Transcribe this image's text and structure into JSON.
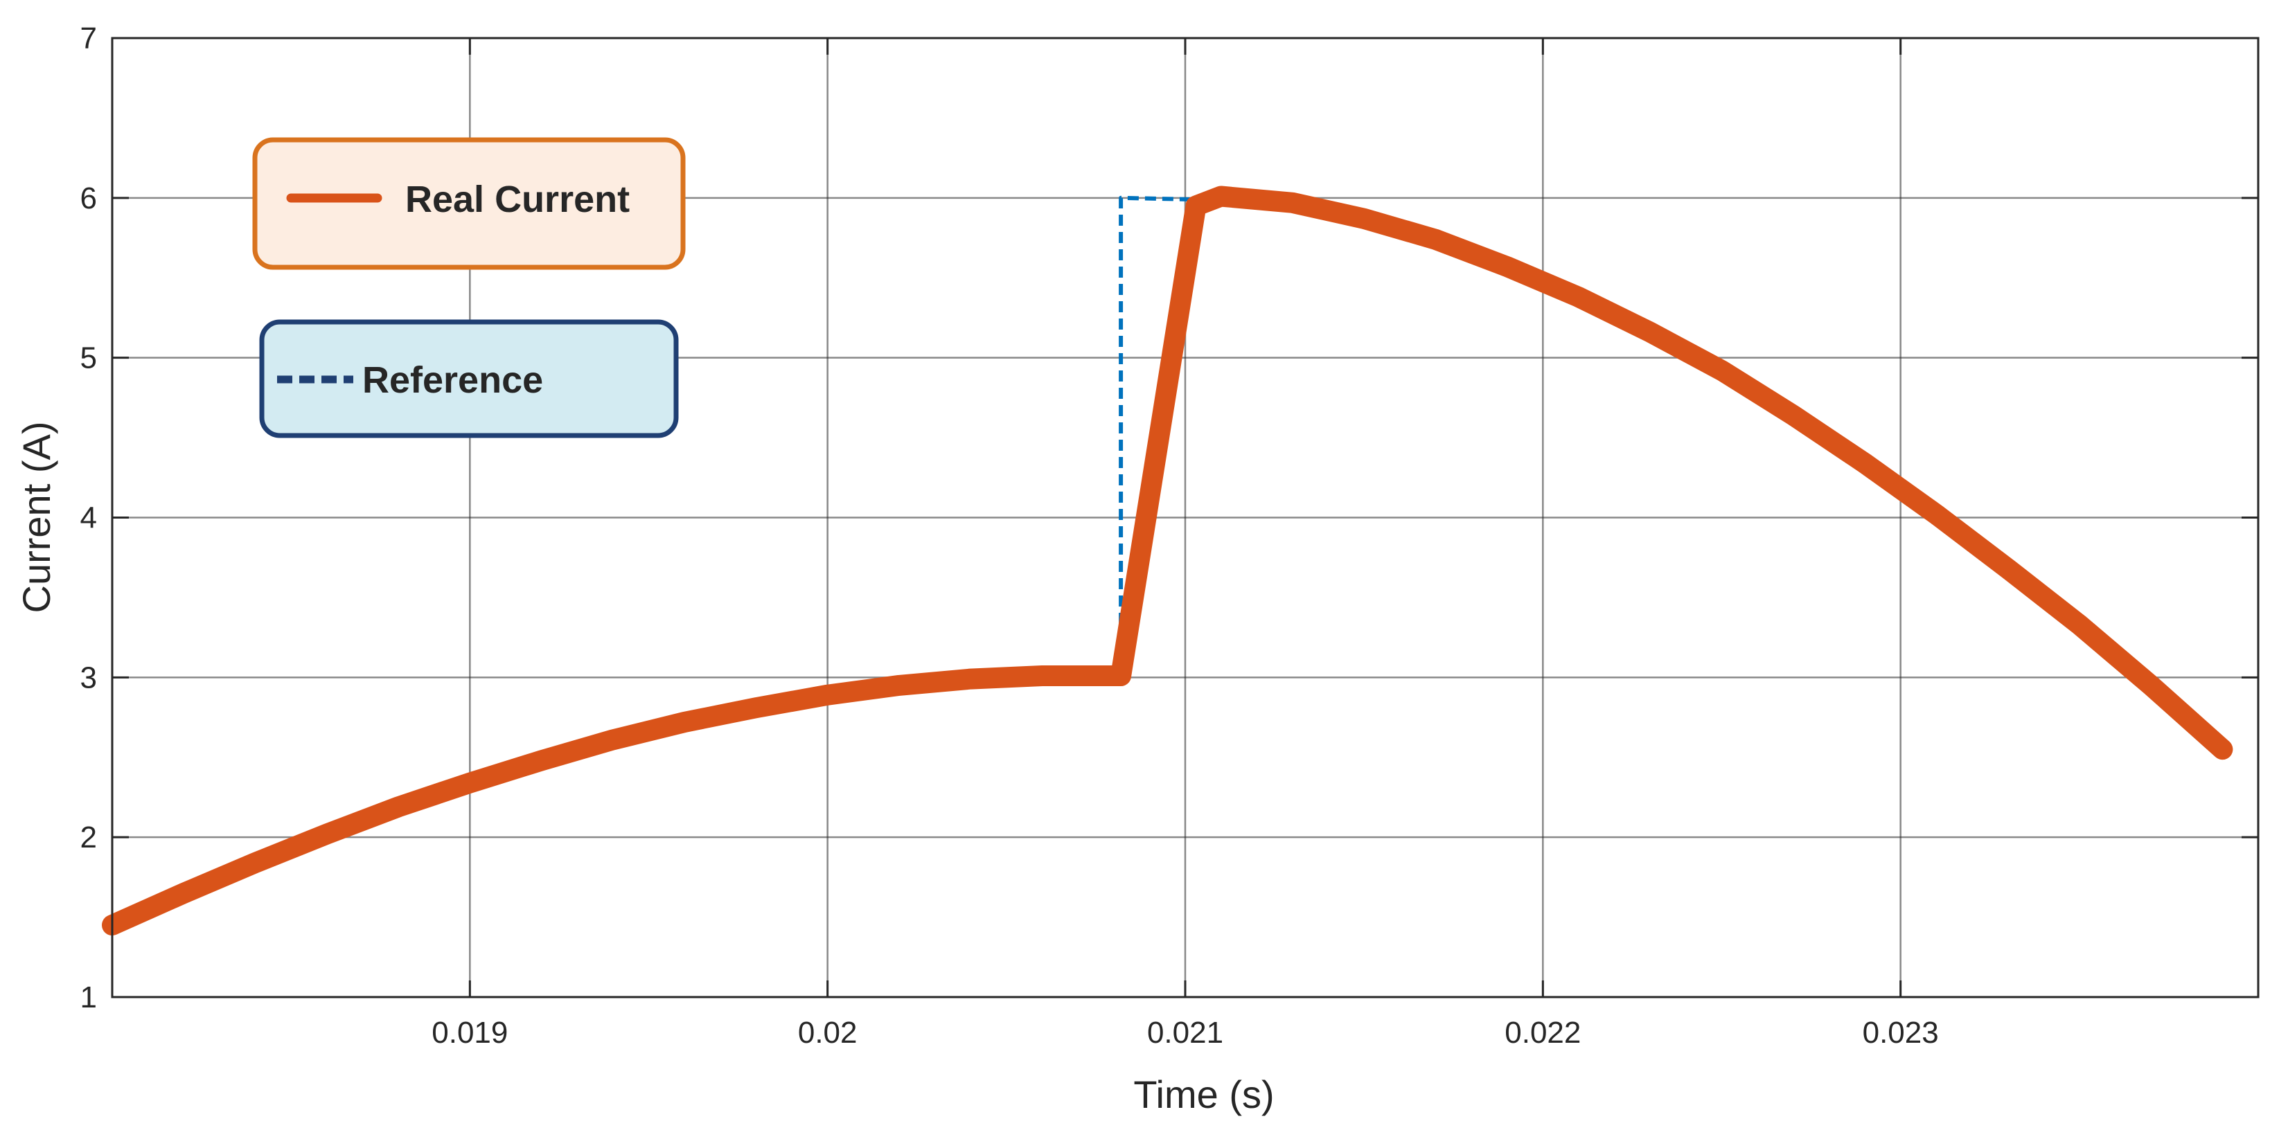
{
  "chart_data": {
    "type": "line",
    "title": "",
    "xlabel": "Time (s)",
    "ylabel": "Current (A)",
    "xlim": [
      0.018,
      0.024
    ],
    "ylim": [
      1,
      7
    ],
    "xticks": [
      0.019,
      0.02,
      0.021,
      0.022,
      0.023
    ],
    "xtick_labels": [
      "0.019",
      "0.02",
      "0.021",
      "0.022",
      "0.023"
    ],
    "yticks": [
      1,
      2,
      3,
      4,
      5,
      6,
      7
    ],
    "ytick_labels": [
      "1",
      "2",
      "3",
      "4",
      "5",
      "6",
      "7"
    ],
    "grid": true,
    "legend_placement": "top-left",
    "series": [
      {
        "name": "Real Current",
        "color": "#D95319",
        "style": "solid-thick",
        "x": [
          0.018,
          0.0182,
          0.0184,
          0.0186,
          0.0188,
          0.019,
          0.0192,
          0.0194,
          0.0196,
          0.0198,
          0.02,
          0.0202,
          0.0204,
          0.0206,
          0.02082,
          0.02103,
          0.0211,
          0.0213,
          0.0215,
          0.0217,
          0.0219,
          0.0221,
          0.0223,
          0.0225,
          0.0227,
          0.0229,
          0.0231,
          0.0233,
          0.0235,
          0.0237,
          0.0239
        ],
        "y": [
          1.45,
          1.65,
          1.84,
          2.02,
          2.19,
          2.34,
          2.48,
          2.61,
          2.72,
          2.81,
          2.89,
          2.95,
          2.99,
          3.01,
          3.01,
          5.95,
          6.01,
          5.97,
          5.87,
          5.74,
          5.57,
          5.38,
          5.16,
          4.92,
          4.64,
          4.34,
          4.02,
          3.68,
          3.33,
          2.95,
          2.55
        ]
      },
      {
        "name": "Reference",
        "color": "#0072BD",
        "style": "dashed",
        "x": [
          0.02082,
          0.02082,
          0.02103
        ],
        "y": [
          3.01,
          6.0,
          5.99
        ]
      }
    ]
  },
  "legend": {
    "real_current": {
      "label": "Real Current",
      "line_color": "#D95319",
      "border_color": "#D9731E",
      "fill_color": "#FDEDE1"
    },
    "reference": {
      "label": "Reference",
      "line_color": "#1F3F73",
      "border_color": "#1F3F73",
      "fill_color": "#D3EBF2"
    }
  }
}
